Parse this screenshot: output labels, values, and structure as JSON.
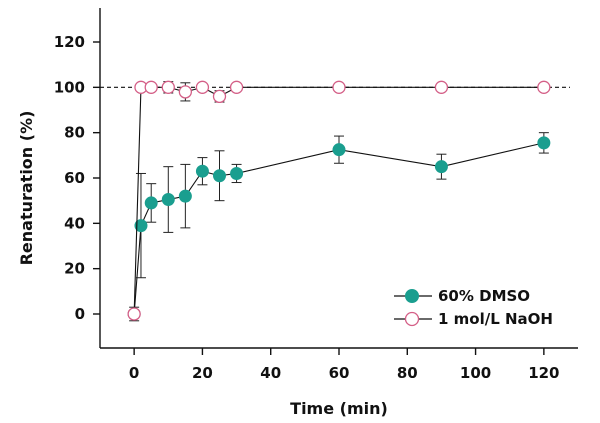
{
  "chart_data": {
    "type": "scatter",
    "title": "",
    "xlabel": "Time (min)",
    "ylabel": "Renaturation (%)",
    "xlim": [
      -10,
      130
    ],
    "ylim": [
      -15,
      135
    ],
    "xticks": [
      0,
      20,
      40,
      60,
      80,
      100,
      120
    ],
    "yticks": [
      0,
      20,
      40,
      60,
      80,
      100,
      120
    ],
    "reference_line": {
      "y": 100,
      "style": "dashed"
    },
    "legend_position": "bottom-right",
    "series": [
      {
        "name": "60% DMSO",
        "marker": "filled-circle",
        "color": "#1a9e8f",
        "x": [
          0,
          2,
          5,
          10,
          15,
          20,
          25,
          30,
          60,
          90,
          120
        ],
        "y": [
          0,
          39,
          49,
          50.5,
          52,
          63,
          61,
          62,
          72.5,
          65,
          75.5
        ],
        "err": [
          3,
          23,
          8.5,
          14.5,
          14,
          6,
          11,
          4,
          6,
          5.5,
          4.5
        ]
      },
      {
        "name": "1 mol/L NaOH",
        "marker": "open-circle",
        "color": "#d45f87",
        "x": [
          0,
          2,
          5,
          10,
          15,
          20,
          25,
          30,
          60,
          90,
          120
        ],
        "y": [
          0,
          100,
          100,
          100,
          98,
          100,
          96,
          100,
          100,
          100,
          100
        ],
        "err": [
          0,
          0,
          0,
          2.5,
          4,
          1.5,
          2.5,
          0,
          0,
          0,
          0
        ]
      }
    ]
  }
}
